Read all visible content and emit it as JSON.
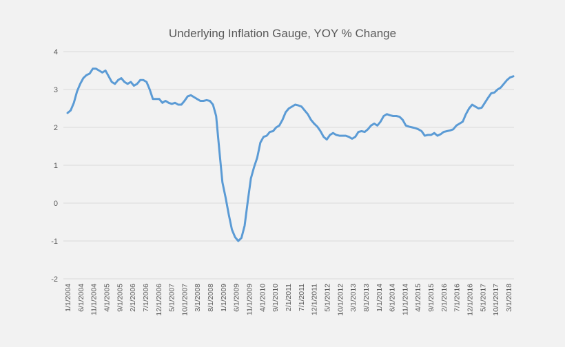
{
  "chart_data": {
    "type": "line",
    "title": "Underlying Inflation Gauge, YOY % Change",
    "xlabel": "",
    "ylabel": "",
    "ylim": [
      -2,
      4
    ],
    "y_ticks": [
      "4",
      "3",
      "2",
      "1",
      "0",
      "-1",
      "-2"
    ],
    "x_tick_labels": [
      "1/1/2004",
      "6/1/2004",
      "11/1/2004",
      "4/1/2005",
      "9/1/2005",
      "2/1/2006",
      "7/1/2006",
      "12/1/2006",
      "5/1/2007",
      "10/1/2007",
      "3/1/2008",
      "8/1/2008",
      "1/1/2009",
      "6/1/2009",
      "11/1/2009",
      "4/1/2010",
      "9/1/2010",
      "2/1/2011",
      "7/1/2011",
      "12/1/2011",
      "5/1/2012",
      "10/1/2012",
      "3/1/2013",
      "8/1/2013",
      "1/1/2014",
      "6/1/2014",
      "11/1/2014",
      "4/1/2015",
      "9/1/2015",
      "2/1/2016",
      "7/1/2016",
      "12/1/2016",
      "5/1/2017",
      "10/1/2017",
      "3/1/2018"
    ],
    "grid": true,
    "line_color": "#5b9bd5",
    "series": [
      {
        "name": "",
        "points": [
          [
            "2004-01",
            2.38
          ],
          [
            "2004-02",
            2.45
          ],
          [
            "2004-03",
            2.65
          ],
          [
            "2004-04",
            2.95
          ],
          [
            "2004-05",
            3.15
          ],
          [
            "2004-06",
            3.3
          ],
          [
            "2004-07",
            3.38
          ],
          [
            "2004-08",
            3.42
          ],
          [
            "2004-09",
            3.55
          ],
          [
            "2004-10",
            3.55
          ],
          [
            "2004-11",
            3.5
          ],
          [
            "2004-12",
            3.45
          ],
          [
            "2005-01",
            3.5
          ],
          [
            "2005-02",
            3.35
          ],
          [
            "2005-03",
            3.2
          ],
          [
            "2005-04",
            3.15
          ],
          [
            "2005-05",
            3.25
          ],
          [
            "2005-06",
            3.3
          ],
          [
            "2005-07",
            3.2
          ],
          [
            "2005-08",
            3.15
          ],
          [
            "2005-09",
            3.2
          ],
          [
            "2005-10",
            3.1
          ],
          [
            "2005-11",
            3.15
          ],
          [
            "2005-12",
            3.25
          ],
          [
            "2006-01",
            3.25
          ],
          [
            "2006-02",
            3.2
          ],
          [
            "2006-03",
            3.0
          ],
          [
            "2006-04",
            2.75
          ],
          [
            "2006-05",
            2.75
          ],
          [
            "2006-06",
            2.75
          ],
          [
            "2006-07",
            2.65
          ],
          [
            "2006-08",
            2.7
          ],
          [
            "2006-09",
            2.65
          ],
          [
            "2006-10",
            2.62
          ],
          [
            "2006-11",
            2.65
          ],
          [
            "2006-12",
            2.6
          ],
          [
            "2007-01",
            2.6
          ],
          [
            "2007-02",
            2.7
          ],
          [
            "2007-03",
            2.82
          ],
          [
            "2007-04",
            2.85
          ],
          [
            "2007-05",
            2.8
          ],
          [
            "2007-06",
            2.75
          ],
          [
            "2007-07",
            2.7
          ],
          [
            "2007-08",
            2.7
          ],
          [
            "2007-09",
            2.72
          ],
          [
            "2007-10",
            2.7
          ],
          [
            "2007-11",
            2.6
          ],
          [
            "2007-12",
            2.3
          ],
          [
            "2008-01",
            1.4
          ],
          [
            "2008-02",
            0.55
          ],
          [
            "2008-03",
            0.15
          ],
          [
            "2008-04",
            -0.3
          ],
          [
            "2008-05",
            -0.7
          ],
          [
            "2008-06",
            -0.9
          ],
          [
            "2008-07",
            -1.0
          ],
          [
            "2008-08",
            -0.92
          ],
          [
            "2008-09",
            -0.6
          ],
          [
            "2008-10",
            0.05
          ],
          [
            "2008-11",
            0.65
          ],
          [
            "2008-12",
            0.95
          ],
          [
            "2009-01",
            1.2
          ],
          [
            "2009-02",
            1.6
          ],
          [
            "2009-03",
            1.75
          ],
          [
            "2009-04",
            1.78
          ],
          [
            "2009-05",
            1.88
          ],
          [
            "2009-06",
            1.9
          ],
          [
            "2009-07",
            2.0
          ],
          [
            "2009-08",
            2.05
          ],
          [
            "2009-09",
            2.2
          ],
          [
            "2009-10",
            2.4
          ],
          [
            "2009-11",
            2.5
          ],
          [
            "2009-12",
            2.55
          ],
          [
            "2010-01",
            2.6
          ],
          [
            "2010-02",
            2.58
          ],
          [
            "2010-03",
            2.55
          ],
          [
            "2010-04",
            2.45
          ],
          [
            "2010-05",
            2.35
          ],
          [
            "2010-06",
            2.2
          ],
          [
            "2010-07",
            2.1
          ],
          [
            "2010-08",
            2.02
          ],
          [
            "2010-09",
            1.9
          ],
          [
            "2010-10",
            1.75
          ],
          [
            "2010-11",
            1.68
          ],
          [
            "2010-12",
            1.8
          ],
          [
            "2011-01",
            1.85
          ],
          [
            "2011-02",
            1.8
          ],
          [
            "2011-03",
            1.78
          ],
          [
            "2011-04",
            1.78
          ],
          [
            "2011-05",
            1.78
          ],
          [
            "2011-06",
            1.75
          ],
          [
            "2011-07",
            1.7
          ],
          [
            "2011-08",
            1.75
          ],
          [
            "2011-09",
            1.88
          ],
          [
            "2011-10",
            1.9
          ],
          [
            "2011-11",
            1.88
          ],
          [
            "2011-12",
            1.95
          ],
          [
            "2012-01",
            2.05
          ],
          [
            "2012-02",
            2.1
          ],
          [
            "2012-03",
            2.05
          ],
          [
            "2012-04",
            2.15
          ],
          [
            "2012-05",
            2.3
          ],
          [
            "2012-06",
            2.35
          ],
          [
            "2012-07",
            2.32
          ],
          [
            "2012-08",
            2.3
          ],
          [
            "2012-09",
            2.3
          ],
          [
            "2012-10",
            2.28
          ],
          [
            "2012-11",
            2.2
          ],
          [
            "2012-12",
            2.05
          ],
          [
            "2013-01",
            2.02
          ],
          [
            "2013-02",
            2.0
          ],
          [
            "2013-03",
            1.98
          ],
          [
            "2013-04",
            1.95
          ],
          [
            "2013-05",
            1.9
          ],
          [
            "2013-06",
            1.78
          ],
          [
            "2013-07",
            1.8
          ],
          [
            "2013-08",
            1.8
          ],
          [
            "2013-09",
            1.85
          ],
          [
            "2013-10",
            1.78
          ],
          [
            "2013-11",
            1.82
          ],
          [
            "2013-12",
            1.88
          ],
          [
            "2014-01",
            1.9
          ],
          [
            "2014-02",
            1.92
          ],
          [
            "2014-03",
            1.95
          ],
          [
            "2014-04",
            2.05
          ],
          [
            "2014-05",
            2.1
          ],
          [
            "2014-06",
            2.15
          ],
          [
            "2014-07",
            2.35
          ],
          [
            "2014-08",
            2.5
          ],
          [
            "2014-09",
            2.6
          ],
          [
            "2014-10",
            2.55
          ],
          [
            "2014-11",
            2.5
          ],
          [
            "2014-12",
            2.52
          ],
          [
            "2015-01",
            2.65
          ],
          [
            "2015-02",
            2.78
          ],
          [
            "2015-03",
            2.9
          ],
          [
            "2015-04",
            2.92
          ],
          [
            "2015-05",
            3.0
          ],
          [
            "2015-06",
            3.05
          ],
          [
            "2015-07",
            3.15
          ],
          [
            "2015-08",
            3.25
          ],
          [
            "2015-09",
            3.32
          ],
          [
            "2015-10",
            3.35
          ]
        ]
      }
    ]
  }
}
